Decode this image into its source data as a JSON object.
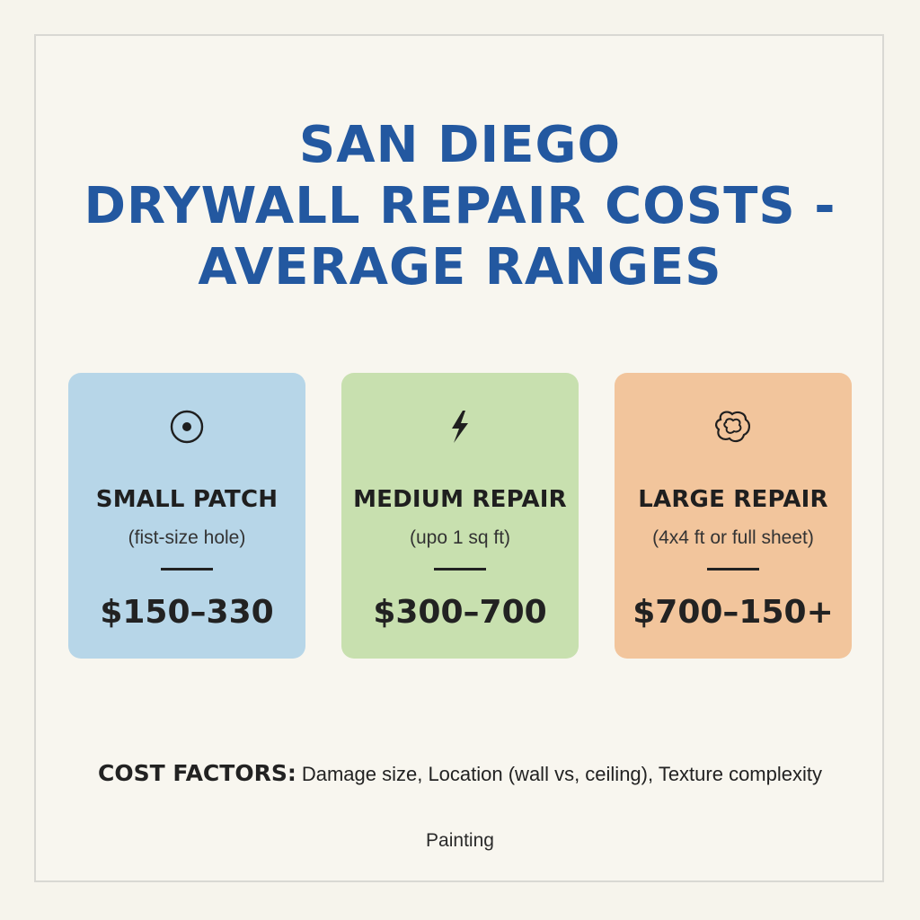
{
  "title": {
    "line1": "SAN DIEGO",
    "line2": "DRYWALL REPAIR COSTS -",
    "line3": "AVERAGE RANGES"
  },
  "cards": [
    {
      "icon": "target-icon",
      "label": "SMALL PATCH",
      "sub": "(fist-size hole)",
      "price": "$150–330",
      "color": "#b7d6e8"
    },
    {
      "icon": "lightning-icon",
      "label": "MEDIUM REPAIR",
      "sub": "(upo 1 sq ft)",
      "price": "$300–700",
      "color": "#c8e0af"
    },
    {
      "icon": "blob-icon",
      "label": "LARGE REPAIR",
      "sub": "(4x4 ft or full sheet)",
      "price": "$700–150+",
      "color": "#f2c59c"
    }
  ],
  "factors": {
    "label": "COST FACTORS:",
    "text": "Damage size, Location (wall vs, ceiling), Texture complexity"
  },
  "footer": "Painting",
  "colors": {
    "title": "#2358a0",
    "background": "#f6f4ec"
  }
}
